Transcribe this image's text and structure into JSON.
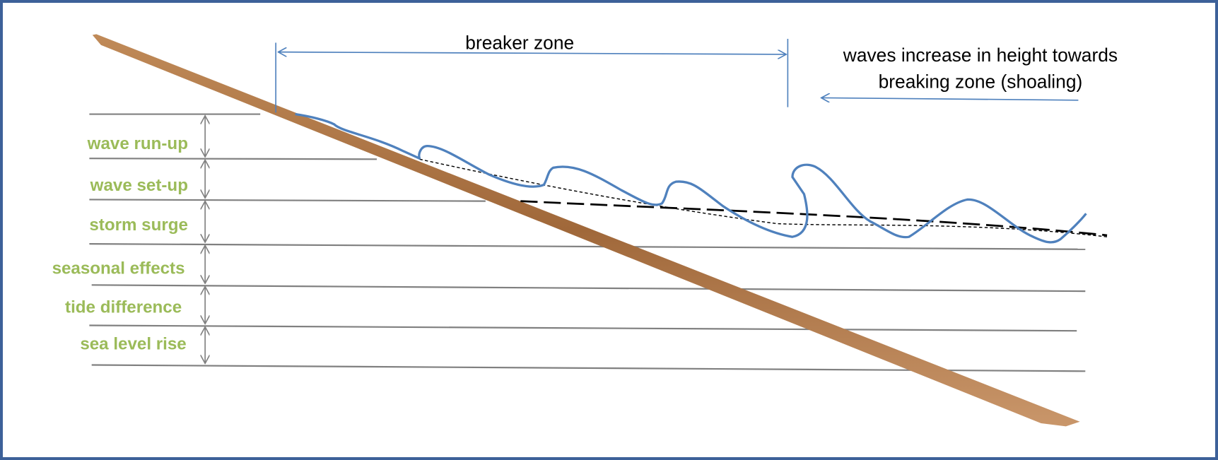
{
  "breaker_zone": {
    "label": "breaker zone"
  },
  "shoaling_note": {
    "lines": [
      "waves increase in height towards",
      "breaking zone (shoaling)"
    ]
  },
  "levels": [
    {
      "label": "wave run-up"
    },
    {
      "label": "wave set-up"
    },
    {
      "label": "storm surge"
    },
    {
      "label": "seasonal effects"
    },
    {
      "label": "tide difference"
    },
    {
      "label": "sea level rise"
    }
  ]
}
